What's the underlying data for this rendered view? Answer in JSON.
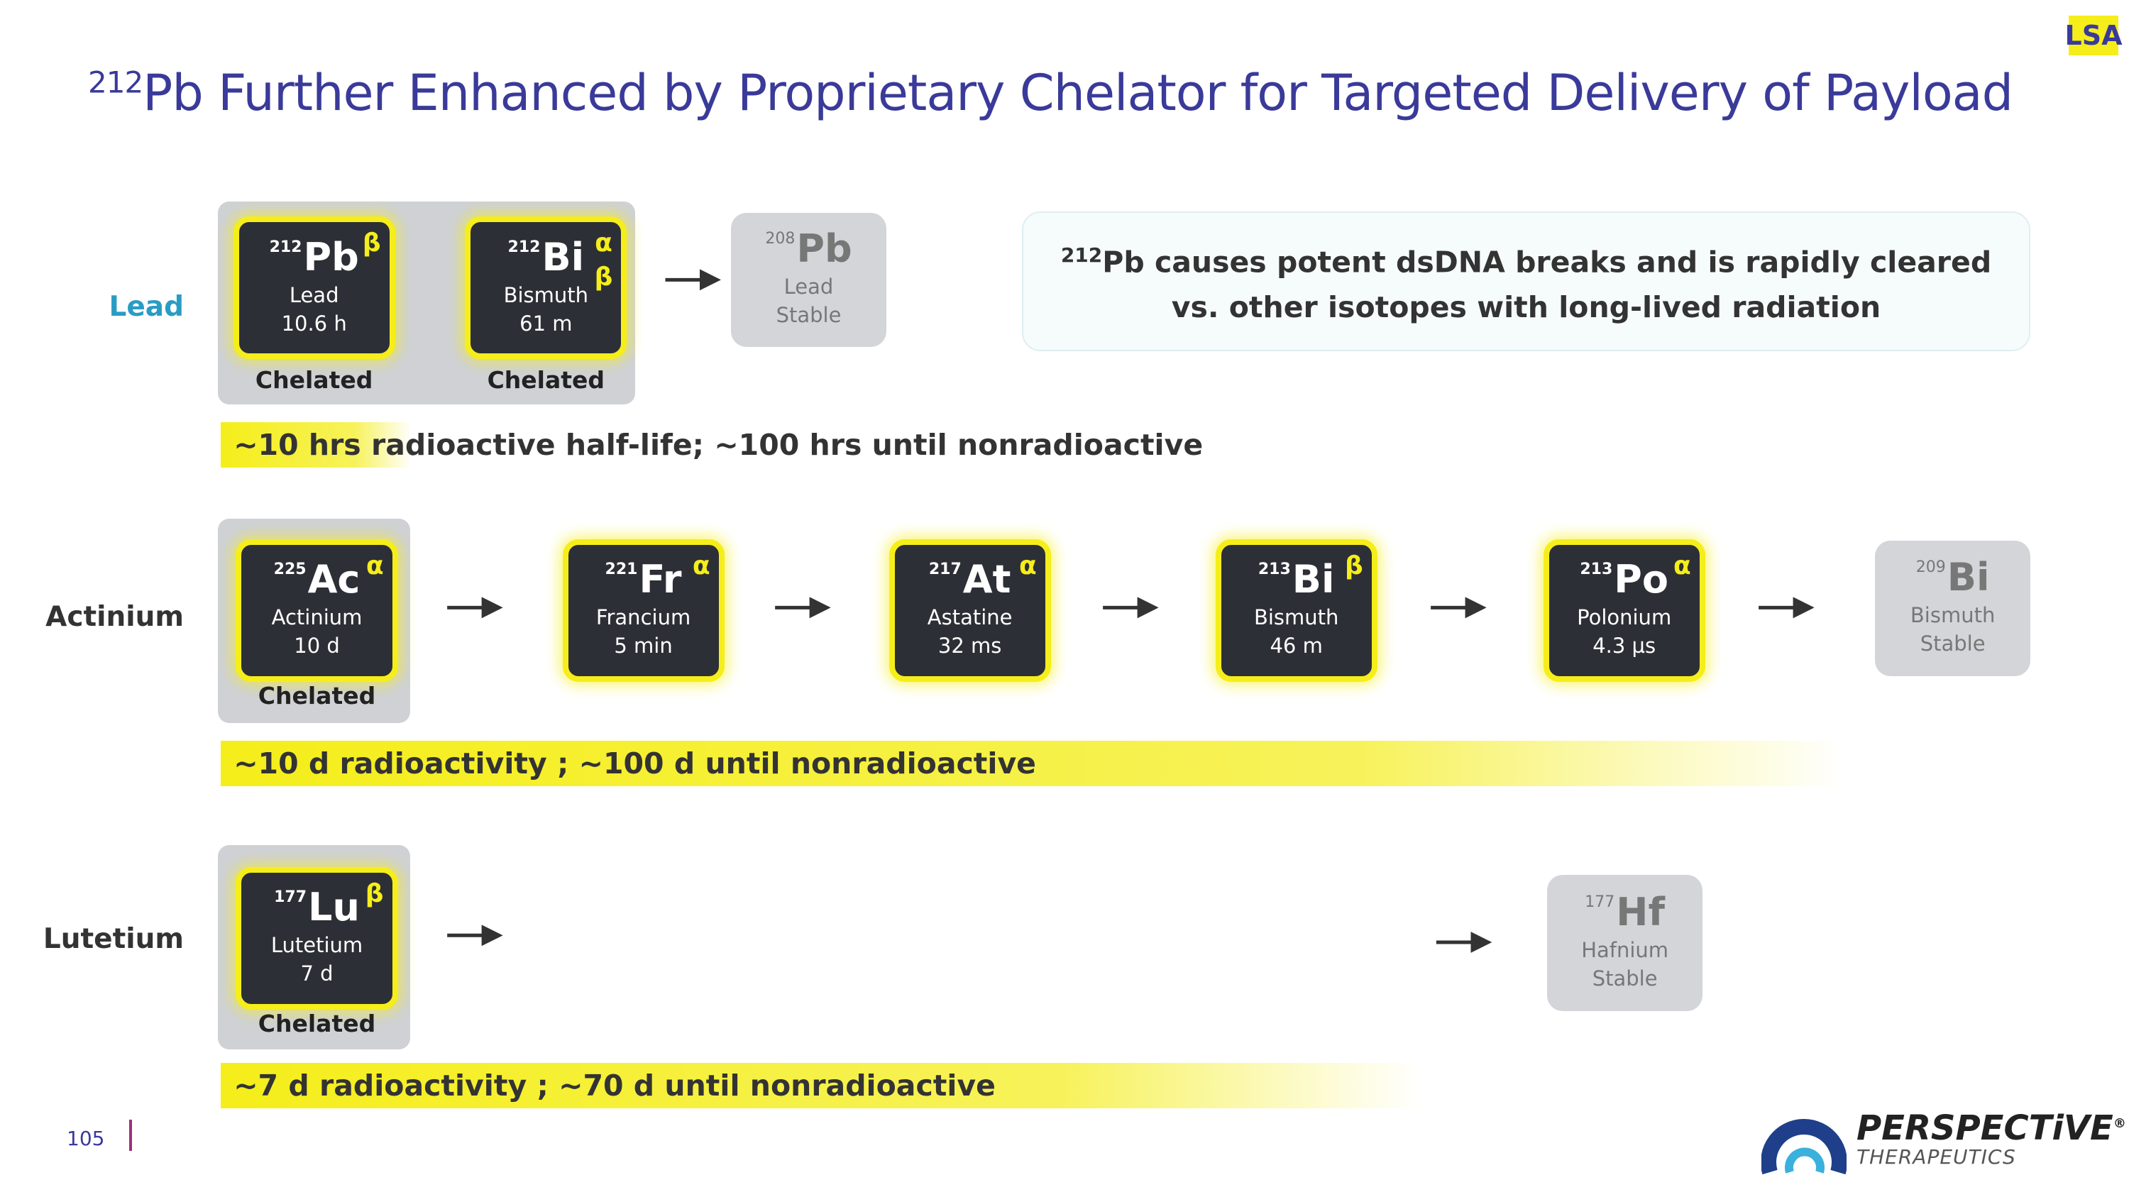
{
  "badge": "LSA",
  "title": {
    "superscript": "212",
    "text": "Pb Further Enhanced by Proprietary Chelator for Targeted Delivery of Payload"
  },
  "callout": {
    "superscript": "212",
    "lines": [
      "Pb causes potent dsDNA breaks and is rapidly cleared",
      "vs. other isotopes with long-lived radiation"
    ]
  },
  "rows": [
    {
      "label": "Lead",
      "chain": [
        {
          "mass": "212",
          "symbol": "Pb",
          "name": "Lead",
          "half_life": "10.6 h",
          "decay": [
            "β"
          ],
          "status": "Chelated"
        },
        {
          "mass": "212",
          "symbol": "Bi",
          "name": "Bismuth",
          "half_life": "61 m",
          "decay": [
            "α",
            "β"
          ],
          "status": "Chelated"
        }
      ],
      "stable": {
        "mass": "208",
        "symbol": "Pb",
        "name": "Lead",
        "half_life": "Stable"
      },
      "note": "~10 hrs radioactive half-life; ~100 hrs until nonradioactive"
    },
    {
      "label": "Actinium",
      "chain": [
        {
          "mass": "225",
          "symbol": "Ac",
          "name": "Actinium",
          "half_life": "10 d",
          "decay": [
            "α"
          ],
          "status": "Chelated"
        },
        {
          "mass": "221",
          "symbol": "Fr",
          "name": "Francium",
          "half_life": "5 min",
          "decay": [
            "α"
          ]
        },
        {
          "mass": "217",
          "symbol": "At",
          "name": "Astatine",
          "half_life": "32 ms",
          "decay": [
            "α"
          ]
        },
        {
          "mass": "213",
          "symbol": "Bi",
          "name": "Bismuth",
          "half_life": "46 m",
          "decay": [
            "β"
          ]
        },
        {
          "mass": "213",
          "symbol": "Po",
          "name": "Polonium",
          "half_life": "4.3 µs",
          "decay": [
            "α"
          ]
        }
      ],
      "stable": {
        "mass": "209",
        "symbol": "Bi",
        "name": "Bismuth",
        "half_life": "Stable"
      },
      "note": "~10 d radioactivity ; ~100 d until nonradioactive"
    },
    {
      "label": "Lutetium",
      "chain": [
        {
          "mass": "177",
          "symbol": "Lu",
          "name": "Lutetium",
          "half_life": "7 d",
          "decay": [
            "β"
          ],
          "status": "Chelated"
        }
      ],
      "stable": {
        "mass": "177",
        "symbol": "Hf",
        "name": "Hafnium",
        "half_life": "Stable"
      },
      "note": "~7 d radioactivity ; ~70 d until nonradioactive"
    }
  ],
  "footer": {
    "page_number": "105",
    "logo": {
      "name": "PERSPECTiVE",
      "registered": "®",
      "subtitle": "THERAPEUTICS"
    }
  }
}
